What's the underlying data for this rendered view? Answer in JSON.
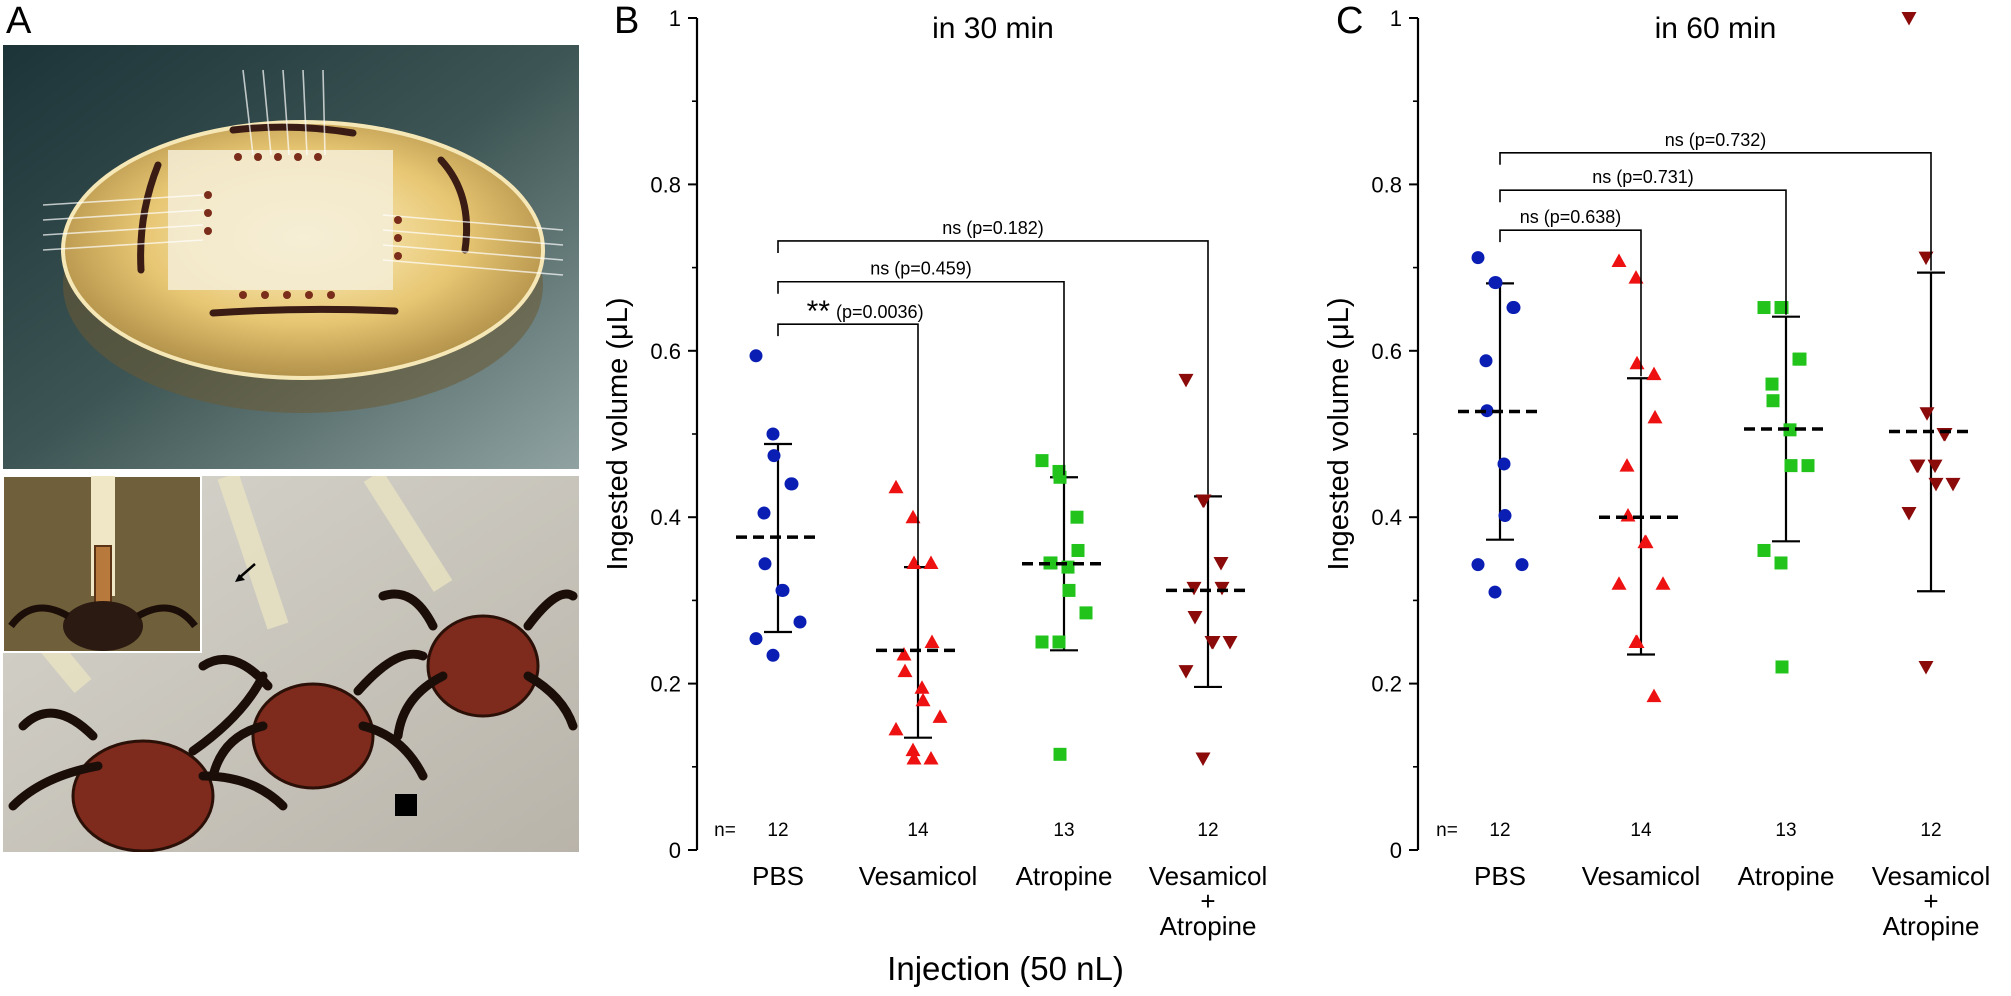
{
  "panels": {
    "a": "A",
    "b": "B",
    "c": "C"
  },
  "xaxis_title": "Injection (50 nL)",
  "n_prefix": "n=",
  "colors": {
    "PBS": "#0a1eb4",
    "Vesamicol": "#ee1111",
    "Atropine": "#22c41c",
    "VesAtr": "#8b0a0a"
  },
  "chart_data": [
    {
      "type": "scatter",
      "title": "in 30 min",
      "ylabel": "Ingested volume (μL)",
      "ylim": [
        0,
        1
      ],
      "yticks": [
        "0",
        "0.2",
        "0.4",
        "0.6",
        "0.8",
        "1"
      ],
      "categories": [
        "PBS",
        "Vesamicol",
        "Atropine",
        "Vesamicol + Atropine"
      ],
      "n": [
        "12",
        "14",
        "13",
        "12"
      ],
      "series": [
        {
          "name": "PBS",
          "marker": "circle",
          "mean": 0.376,
          "sd_low": 0.262,
          "sd_high": 0.488,
          "values": [
            0.594,
            0.5,
            0.474,
            0.44,
            0.44,
            0.405,
            0.344,
            0.312,
            0.312,
            0.274,
            0.254,
            0.234
          ]
        },
        {
          "name": "Vesamicol",
          "marker": "triangle-up",
          "mean": 0.24,
          "sd_low": 0.135,
          "sd_high": 0.34,
          "values": [
            0.436,
            0.4,
            0.345,
            0.345,
            0.25,
            0.235,
            0.215,
            0.195,
            0.18,
            0.16,
            0.145,
            0.12,
            0.11,
            0.11
          ]
        },
        {
          "name": "Atropine",
          "marker": "square",
          "mean": 0.344,
          "sd_low": 0.24,
          "sd_high": 0.448,
          "values": [
            0.468,
            0.455,
            0.448,
            0.4,
            0.36,
            0.345,
            0.345,
            0.312,
            0.285,
            0.25,
            0.25,
            0.115,
            0.34
          ]
        },
        {
          "name": "Vesamicol + Atropine",
          "marker": "triangle-down",
          "mean": 0.312,
          "sd_low": 0.196,
          "sd_high": 0.425,
          "values": [
            0.565,
            0.42,
            0.42,
            0.345,
            0.315,
            0.315,
            0.28,
            0.25,
            0.25,
            0.25,
            0.215,
            0.11
          ]
        }
      ],
      "comparisons": [
        {
          "from": 0,
          "to": 1,
          "stars": "**",
          "text": "(p=0.0036)",
          "level": 0.632
        },
        {
          "from": 0,
          "to": 2,
          "stars": "",
          "text": "ns (p=0.459)",
          "level": 0.683
        },
        {
          "from": 0,
          "to": 3,
          "stars": "",
          "text": "ns (p=0.182)",
          "level": 0.732
        }
      ]
    },
    {
      "type": "scatter",
      "title": "in 60 min",
      "ylabel": "Ingested volume (μL)",
      "ylim": [
        0,
        1
      ],
      "yticks": [
        "0",
        "0.2",
        "0.4",
        "0.6",
        "0.8",
        "1"
      ],
      "categories": [
        "PBS",
        "Vesamicol",
        "Atropine",
        "Vesamicol + Atropine"
      ],
      "n": [
        "12",
        "14",
        "13",
        "12"
      ],
      "series": [
        {
          "name": "PBS",
          "marker": "circle",
          "mean": 0.527,
          "sd_low": 0.373,
          "sd_high": 0.681,
          "values": [
            0.712,
            0.682,
            0.682,
            0.652,
            0.652,
            0.588,
            0.528,
            0.464,
            0.402,
            0.343,
            0.343,
            0.31
          ]
        },
        {
          "name": "Vesamicol",
          "marker": "triangle-up",
          "mean": 0.4,
          "sd_low": 0.235,
          "sd_high": 0.567,
          "values": [
            0.708,
            0.688,
            0.585,
            0.572,
            0.52,
            0.462,
            0.402,
            0.37,
            0.37,
            0.32,
            0.32,
            0.25,
            0.25,
            0.185
          ]
        },
        {
          "name": "Atropine",
          "marker": "square",
          "mean": 0.506,
          "sd_low": 0.371,
          "sd_high": 0.641,
          "values": [
            0.652,
            0.652,
            0.652,
            0.59,
            0.59,
            0.56,
            0.54,
            0.462,
            0.462,
            0.36,
            0.345,
            0.22,
            0.505
          ]
        },
        {
          "name": "Vesamicol + Atropine",
          "marker": "triangle-down",
          "mean": 0.503,
          "sd_low": 0.311,
          "sd_high": 0.694,
          "values": [
            1.0,
            0.712,
            0.525,
            0.5,
            0.5,
            0.462,
            0.462,
            0.462,
            0.44,
            0.44,
            0.405,
            0.22
          ]
        }
      ],
      "comparisons": [
        {
          "from": 0,
          "to": 1,
          "stars": "",
          "text": "ns (p=0.638)",
          "level": 0.745
        },
        {
          "from": 0,
          "to": 2,
          "stars": "",
          "text": "ns (p=0.731)",
          "level": 0.793
        },
        {
          "from": 0,
          "to": 3,
          "stars": "",
          "text": "ns (p=0.732)",
          "level": 0.838
        }
      ]
    }
  ]
}
